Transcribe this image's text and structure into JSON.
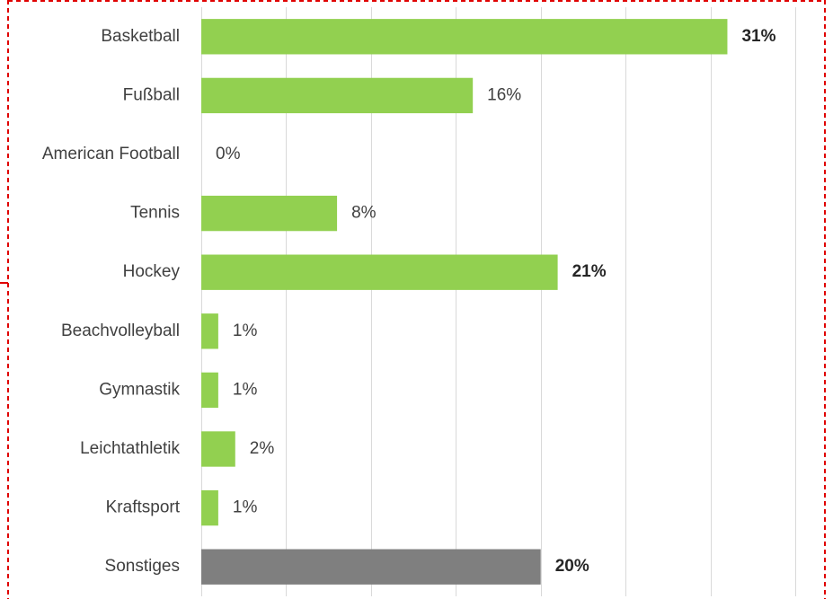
{
  "chart_data": {
    "type": "bar",
    "orientation": "horizontal",
    "categories": [
      "Basketball",
      "Fußball",
      "American Football",
      "Tennis",
      "Hockey",
      "Beachvolleyball",
      "Gymnastik",
      "Leichtathletik",
      "Kraftsport",
      "Sonstiges"
    ],
    "values": [
      31,
      16,
      0,
      8,
      21,
      1,
      1,
      2,
      1,
      20
    ],
    "value_labels": [
      "31%",
      "16%",
      "0%",
      "8%",
      "21%",
      "1%",
      "1%",
      "2%",
      "1%",
      "20%"
    ],
    "bold_labels": [
      true,
      false,
      false,
      false,
      true,
      false,
      false,
      false,
      false,
      true
    ],
    "bar_colors": [
      "#92d050",
      "#92d050",
      "#92d050",
      "#92d050",
      "#92d050",
      "#92d050",
      "#92d050",
      "#92d050",
      "#92d050",
      "#7f7f7f"
    ],
    "xlim": [
      0,
      35
    ],
    "x_gridline_step": 5,
    "grid": true,
    "frame_color": "#e00000",
    "gridline_color": "#d9d9d9"
  }
}
